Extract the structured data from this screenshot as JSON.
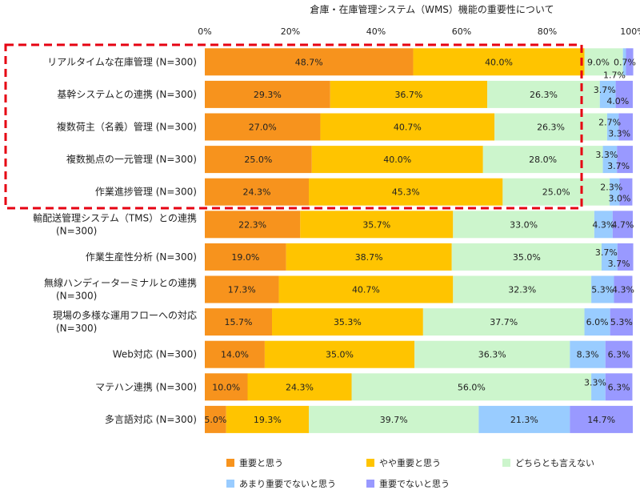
{
  "chart_data": {
    "type": "bar",
    "orientation": "horizontal",
    "stacked": "percent",
    "title": "倉庫・在庫管理システム（WMS）機能の重要性について",
    "xlim": [
      0,
      100
    ],
    "x_ticks": [
      "0%",
      "20%",
      "40%",
      "60%",
      "80%",
      "100%"
    ],
    "categories": [
      [
        "リアルタイムな在庫管理 (N=300)"
      ],
      [
        "基幹システムとの連携 (N=300)"
      ],
      [
        "複数荷主（名義）管理 (N=300)"
      ],
      [
        "複数拠点の一元管理 (N=300)"
      ],
      [
        "作業進捗管理 (N=300)"
      ],
      [
        "輸配送管理システム（TMS）との連携",
        "(N=300)"
      ],
      [
        "作業生産性分析 (N=300)"
      ],
      [
        "無線ハンディーターミナルとの連携",
        "(N=300)"
      ],
      [
        "現場の多様な運用フローへの対応",
        "(N=300)"
      ],
      [
        "Web対応 (N=300)"
      ],
      [
        "マテハン連携 (N=300)"
      ],
      [
        "多言語対応 (N=300)"
      ]
    ],
    "series": [
      {
        "name": "重要と思う",
        "color": "#F7931D",
        "values": [
          48.7,
          29.3,
          27.0,
          25.0,
          24.3,
          22.3,
          19.0,
          17.3,
          15.7,
          14.0,
          10.0,
          5.0
        ]
      },
      {
        "name": "やや重要と思う",
        "color": "#FFC400",
        "values": [
          40.0,
          36.7,
          40.7,
          40.0,
          45.3,
          35.7,
          38.7,
          40.7,
          35.3,
          35.0,
          24.3,
          19.3
        ]
      },
      {
        "name": "どちらとも言えない",
        "color": "#CCF5CC",
        "values": [
          9.0,
          26.3,
          26.3,
          28.0,
          25.0,
          33.0,
          35.0,
          32.3,
          37.7,
          36.3,
          56.0,
          39.7
        ]
      },
      {
        "name": "あまり重要でないと思う",
        "color": "#99CCFF",
        "values": [
          0.7,
          3.7,
          2.7,
          3.3,
          2.3,
          4.3,
          3.7,
          5.3,
          6.0,
          8.3,
          3.3,
          21.3
        ]
      },
      {
        "name": "重要でないと思う",
        "color": "#9999FF",
        "values": [
          1.7,
          4.0,
          3.3,
          3.7,
          3.0,
          4.7,
          3.7,
          4.3,
          5.3,
          6.3,
          6.3,
          14.7
        ]
      }
    ],
    "data_labels": [
      [
        "48.7%",
        "29.3%",
        "27.0%",
        "25.0%",
        "24.3%",
        "22.3%",
        "19.0%",
        "17.3%",
        "15.7%",
        "14.0%",
        "10.0%",
        "5.0%"
      ],
      [
        "40.0%",
        "36.7%",
        "40.7%",
        "40.0%",
        "45.3%",
        "35.7%",
        "38.7%",
        "40.7%",
        "35.3%",
        "35.0%",
        "24.3%",
        "19.3%"
      ],
      [
        "9.0%",
        "26.3%",
        "26.3%",
        "28.0%",
        "25.0%",
        "33.0%",
        "35.0%",
        "32.3%",
        "37.7%",
        "36.3%",
        "56.0%",
        "39.7%"
      ],
      [
        "0.7%",
        "3.7%",
        "2.7%",
        "3.3%",
        "2.3%",
        "4.3%",
        "3.7%",
        "5.3%",
        "6.0%",
        "8.3%",
        "3.3%",
        "21.3%"
      ],
      [
        "1.7%",
        "4.0%",
        "3.3%",
        "3.7%",
        "3.0%",
        "4.7%",
        "3.7%",
        "4.3%",
        "5.3%",
        "6.3%",
        "6.3%",
        "14.7%"
      ]
    ],
    "grid": false,
    "legend_position": "bottom",
    "highlight": {
      "rows": [
        0,
        1,
        2,
        3,
        4
      ],
      "style": "red-dashed-box",
      "color": "#E60012"
    }
  }
}
